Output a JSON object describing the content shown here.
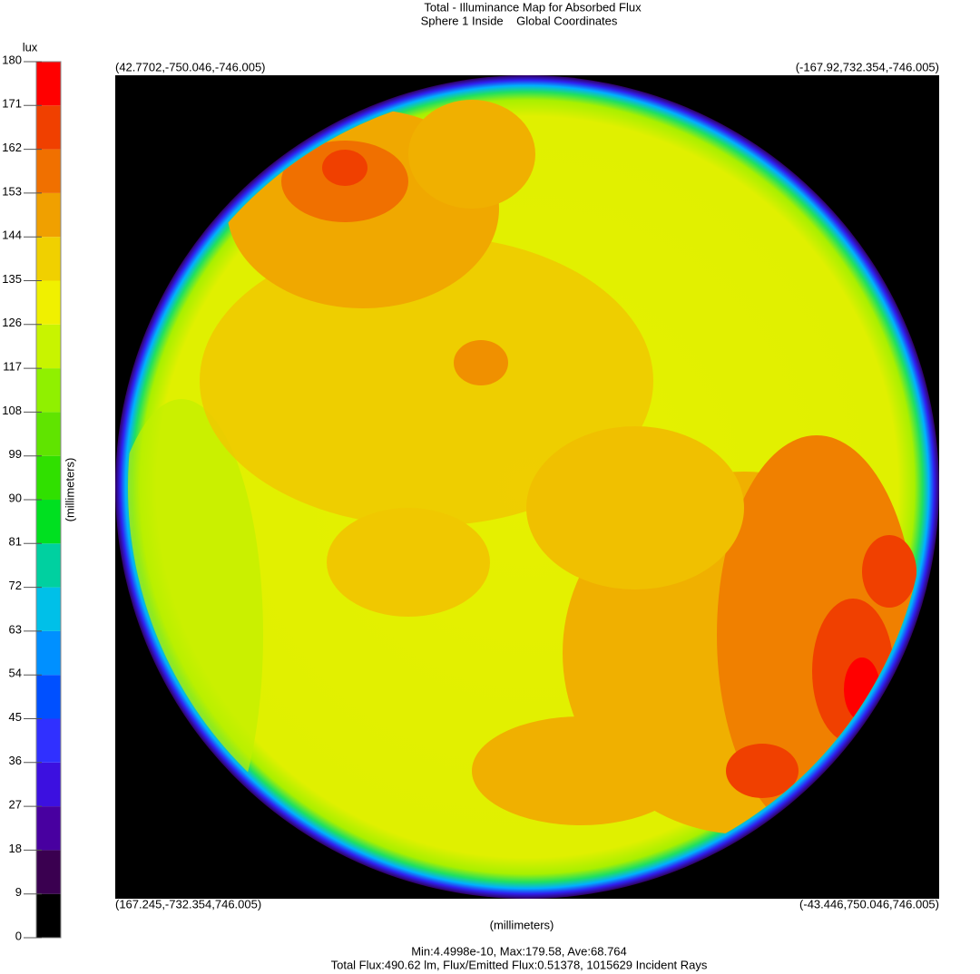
{
  "chart_data": {
    "type": "heatmap",
    "title": "Total - Illuminance Map for Absorbed Flux",
    "subtitle": "Sphere 1 Inside    Global Coordinates",
    "xlabel": "(millimeters)",
    "ylabel": "(millimeters)",
    "corner_labels": {
      "top_left": "(42.7702,-750.046,-746.005)",
      "top_right": "(-167.92,732.354,-746.005)",
      "bottom_left": "(167.245,-732.354,746.005)",
      "bottom_right": "(-43.446,750.046,746.005)"
    },
    "colorbar": {
      "unit": "lux",
      "lim": [
        0,
        180
      ],
      "ticks": [
        0,
        9,
        18,
        27,
        36,
        45,
        54,
        63,
        72,
        81,
        90,
        99,
        108,
        117,
        126,
        135,
        144,
        153,
        162,
        171,
        180
      ],
      "colors": [
        "#000000",
        "#3a0050",
        "#4800a0",
        "#3c10e0",
        "#3030ff",
        "#0050ff",
        "#0090ff",
        "#00c0e8",
        "#00d0a0",
        "#00e020",
        "#30e000",
        "#60e400",
        "#90f000",
        "#c8f400",
        "#f0f000",
        "#f0d000",
        "#f0a000",
        "#f07000",
        "#f04000",
        "#ff0000"
      ]
    },
    "stats": [
      "Min:4.4998e-10, Max:179.58, Ave:68.764",
      "Total Flux:490.62 lm, Flux/Emitted Flux:0.51378, 1015629 Incident Rays"
    ]
  }
}
